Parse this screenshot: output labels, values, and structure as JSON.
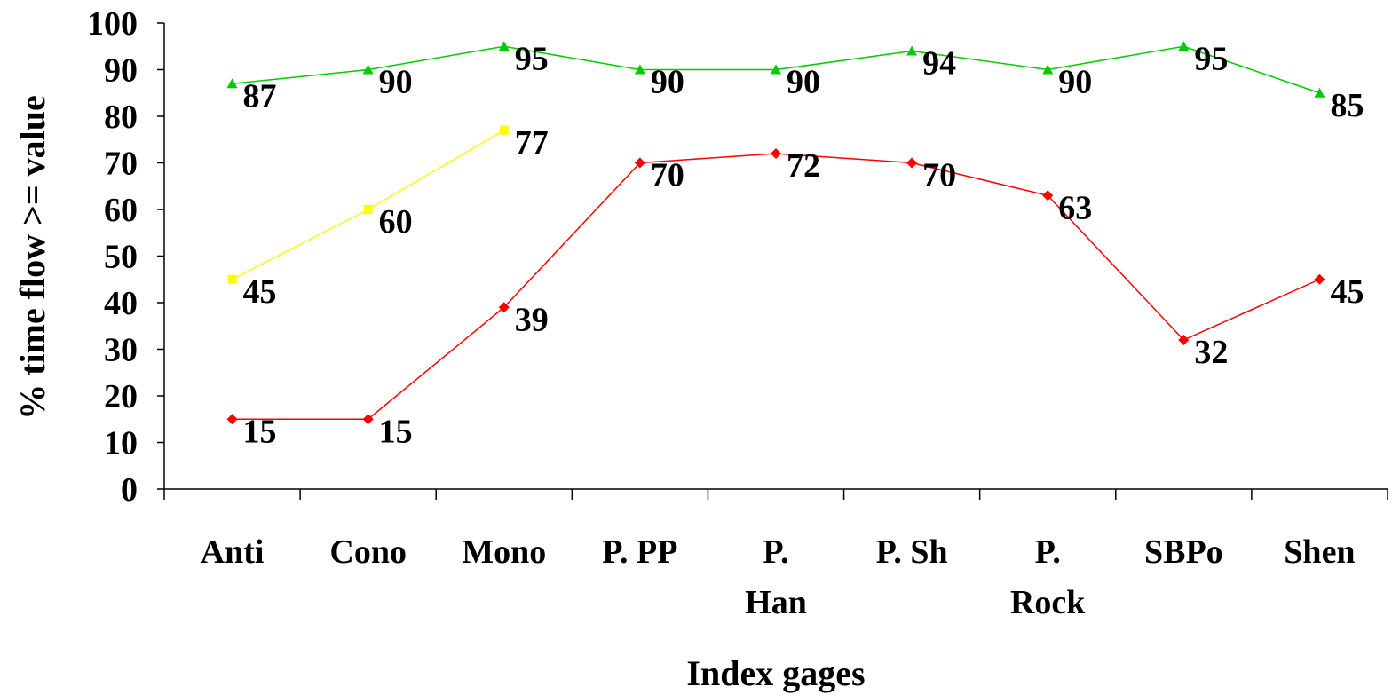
{
  "chart_data": {
    "type": "line",
    "title": "",
    "xlabel": "Index gages",
    "ylabel": "% time flow >= value",
    "ylim": [
      0,
      100
    ],
    "yticks": [
      "0",
      "10",
      "20",
      "30",
      "40",
      "50",
      "60",
      "70",
      "80",
      "90",
      "100"
    ],
    "categories": [
      [
        "Anti"
      ],
      [
        "Cono"
      ],
      [
        "Mono"
      ],
      [
        "P. PP"
      ],
      [
        "P.",
        "Han"
      ],
      [
        "P. Sh"
      ],
      [
        "P.",
        "Rock"
      ],
      [
        "SBPo"
      ],
      [
        "Shen"
      ]
    ],
    "grid": false,
    "legend": "none",
    "series": [
      {
        "color": "#00cc00",
        "marker": "triangle",
        "values": [
          87,
          90,
          95,
          90,
          90,
          94,
          90,
          95,
          85
        ]
      },
      {
        "color": "#ffff00",
        "marker": "square",
        "values": [
          45,
          60,
          77,
          null,
          null,
          null,
          null,
          null,
          null
        ]
      },
      {
        "color": "#ff0000",
        "marker": "diamond",
        "values": [
          15,
          15,
          39,
          70,
          72,
          70,
          63,
          32,
          45
        ]
      }
    ]
  }
}
